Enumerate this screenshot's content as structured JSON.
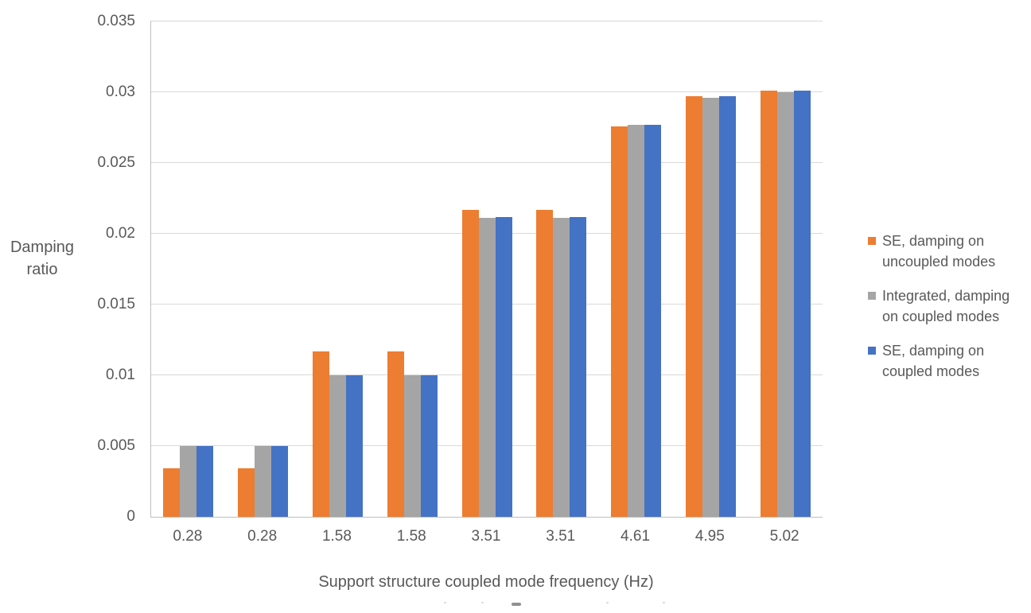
{
  "chart_data": {
    "type": "bar",
    "title": "",
    "xlabel": "Support structure coupled mode frequency (Hz)",
    "ylabel": "Damping ratio",
    "ylabel_lines": [
      "Damping",
      "ratio"
    ],
    "categories": [
      "0.28",
      "0.28",
      "1.58",
      "1.58",
      "3.51",
      "3.51",
      "4.61",
      "4.95",
      "5.02"
    ],
    "series": [
      {
        "name": "SE, damping on uncoupled modes",
        "color": "#ED7D31",
        "values": [
          0.0034,
          0.0034,
          0.0117,
          0.0117,
          0.0217,
          0.0217,
          0.0276,
          0.0297,
          0.0301
        ]
      },
      {
        "name": "Integrated, damping on coupled modes",
        "color": "#A5A5A5",
        "values": [
          0.005,
          0.005,
          0.01,
          0.01,
          0.0211,
          0.0211,
          0.0277,
          0.0296,
          0.03
        ]
      },
      {
        "name": "SE, damping on coupled modes",
        "color": "#4472C4",
        "values": [
          0.005,
          0.005,
          0.01,
          0.01,
          0.0212,
          0.0212,
          0.0277,
          0.0297,
          0.0301
        ]
      }
    ],
    "ylim": [
      0,
      0.035
    ],
    "y_ticks": [
      0,
      0.005,
      0.01,
      0.015,
      0.02,
      0.025,
      0.03,
      0.035
    ],
    "y_tick_labels": [
      "0",
      "0.005",
      "0.01",
      "0.015",
      "0.02",
      "0.025",
      "0.03",
      "0.035"
    ],
    "grid": true,
    "legend_position": "right",
    "legend": {
      "items": [
        {
          "series": 0,
          "lines": [
            "SE, damping on",
            "uncoupled modes"
          ]
        },
        {
          "series": 1,
          "lines": [
            "Integrated, damping",
            "on coupled modes"
          ]
        },
        {
          "series": 2,
          "lines": [
            "SE, damping on",
            "coupled modes"
          ]
        }
      ]
    }
  },
  "colors": {
    "text": "#595959",
    "gridline": "#D9D9D9",
    "axis_line": "#BFBFBF",
    "background": "#FFFFFF"
  }
}
